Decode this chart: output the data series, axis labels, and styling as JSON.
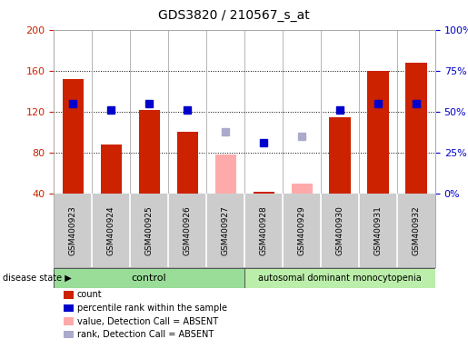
{
  "title": "GDS3820 / 210567_s_at",
  "samples": [
    "GSM400923",
    "GSM400924",
    "GSM400925",
    "GSM400926",
    "GSM400927",
    "GSM400928",
    "GSM400929",
    "GSM400930",
    "GSM400931",
    "GSM400932"
  ],
  "count_values": [
    152,
    88,
    122,
    100,
    null,
    42,
    null,
    115,
    160,
    168
  ],
  "count_absent_values": [
    null,
    null,
    null,
    null,
    78,
    null,
    50,
    null,
    null,
    null
  ],
  "percentile_values": [
    128,
    122,
    128,
    122,
    null,
    90,
    null,
    122,
    128,
    128
  ],
  "percentile_absent_values": [
    null,
    null,
    null,
    null,
    100,
    null,
    96,
    null,
    null,
    null
  ],
  "count_color": "#cc2200",
  "count_absent_color": "#ffaaaa",
  "percentile_color": "#0000cc",
  "percentile_absent_color": "#aaaacc",
  "ylim_left": [
    40,
    200
  ],
  "ylim_right": [
    0,
    100
  ],
  "yticks_left": [
    40,
    80,
    120,
    160,
    200
  ],
  "yticks_right": [
    0,
    25,
    50,
    75,
    100
  ],
  "grid_values": [
    80,
    120,
    160
  ],
  "bar_width": 0.55,
  "marker_size": 6,
  "n_control": 5,
  "n_disease": 5,
  "control_label": "control",
  "disease_label": "autosomal dominant monocytopenia",
  "disease_state_label": "disease state",
  "legend_items": [
    {
      "label": "count",
      "color": "#cc2200"
    },
    {
      "label": "percentile rank within the sample",
      "color": "#0000cc"
    },
    {
      "label": "value, Detection Call = ABSENT",
      "color": "#ffaaaa"
    },
    {
      "label": "rank, Detection Call = ABSENT",
      "color": "#aaaacc"
    }
  ],
  "plot_bg_color": "#ffffff",
  "right_axis_color": "#0000cc",
  "left_axis_color": "#cc2200",
  "control_color": "#99dd99",
  "disease_color": "#bbeeaa",
  "label_bg_color": "#cccccc"
}
